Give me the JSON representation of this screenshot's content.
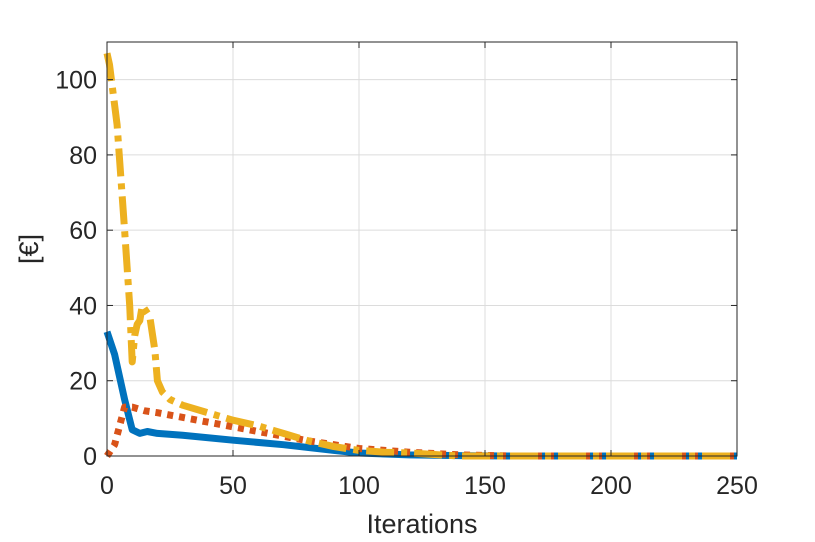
{
  "chart_data": {
    "type": "line",
    "xlabel": "Iterations",
    "ylabel": "[€]",
    "xlim": [
      0,
      250
    ],
    "ylim": [
      0,
      110
    ],
    "xticks": [
      0,
      50,
      100,
      150,
      200,
      250
    ],
    "yticks": [
      0,
      20,
      40,
      60,
      80,
      100
    ],
    "grid": true,
    "series": [
      {
        "color": "#0072BD",
        "style": "solid",
        "points": [
          [
            0,
            33
          ],
          [
            3,
            27
          ],
          [
            7,
            15
          ],
          [
            10,
            7
          ],
          [
            13,
            6
          ],
          [
            16,
            6.5
          ],
          [
            20,
            6
          ],
          [
            30,
            5.5
          ],
          [
            50,
            4.2
          ],
          [
            70,
            3
          ],
          [
            90,
            1.5
          ],
          [
            100,
            0.8
          ],
          [
            120,
            0.3
          ],
          [
            140,
            0.1
          ],
          [
            160,
            0
          ],
          [
            250,
            0
          ]
        ]
      },
      {
        "color": "#D95319",
        "style": "dotted",
        "points": [
          [
            0,
            0
          ],
          [
            3,
            3
          ],
          [
            7,
            13
          ],
          [
            10,
            13
          ],
          [
            15,
            12
          ],
          [
            20,
            11.5
          ],
          [
            40,
            9
          ],
          [
            60,
            6.5
          ],
          [
            80,
            4
          ],
          [
            100,
            2
          ],
          [
            120,
            1
          ],
          [
            140,
            0.3
          ],
          [
            160,
            0
          ],
          [
            250,
            0
          ]
        ]
      },
      {
        "color": "#EDB120",
        "style": "dashdot",
        "points": [
          [
            0,
            107
          ],
          [
            1,
            104
          ],
          [
            4,
            88
          ],
          [
            7,
            60
          ],
          [
            9,
            40
          ],
          [
            10,
            25
          ],
          [
            11,
            32
          ],
          [
            12,
            35
          ],
          [
            13,
            36
          ],
          [
            14,
            40
          ],
          [
            15,
            39
          ],
          [
            17,
            37
          ],
          [
            19,
            28
          ],
          [
            20,
            20
          ],
          [
            22,
            17
          ],
          [
            25,
            15
          ],
          [
            30,
            13.5
          ],
          [
            40,
            11.5
          ],
          [
            50,
            9.5
          ],
          [
            60,
            8
          ],
          [
            70,
            6
          ],
          [
            80,
            4
          ],
          [
            90,
            2.5
          ],
          [
            100,
            1.5
          ],
          [
            110,
            1
          ],
          [
            120,
            0.8
          ],
          [
            130,
            0.4
          ],
          [
            140,
            0
          ],
          [
            250,
            0
          ]
        ]
      }
    ]
  }
}
